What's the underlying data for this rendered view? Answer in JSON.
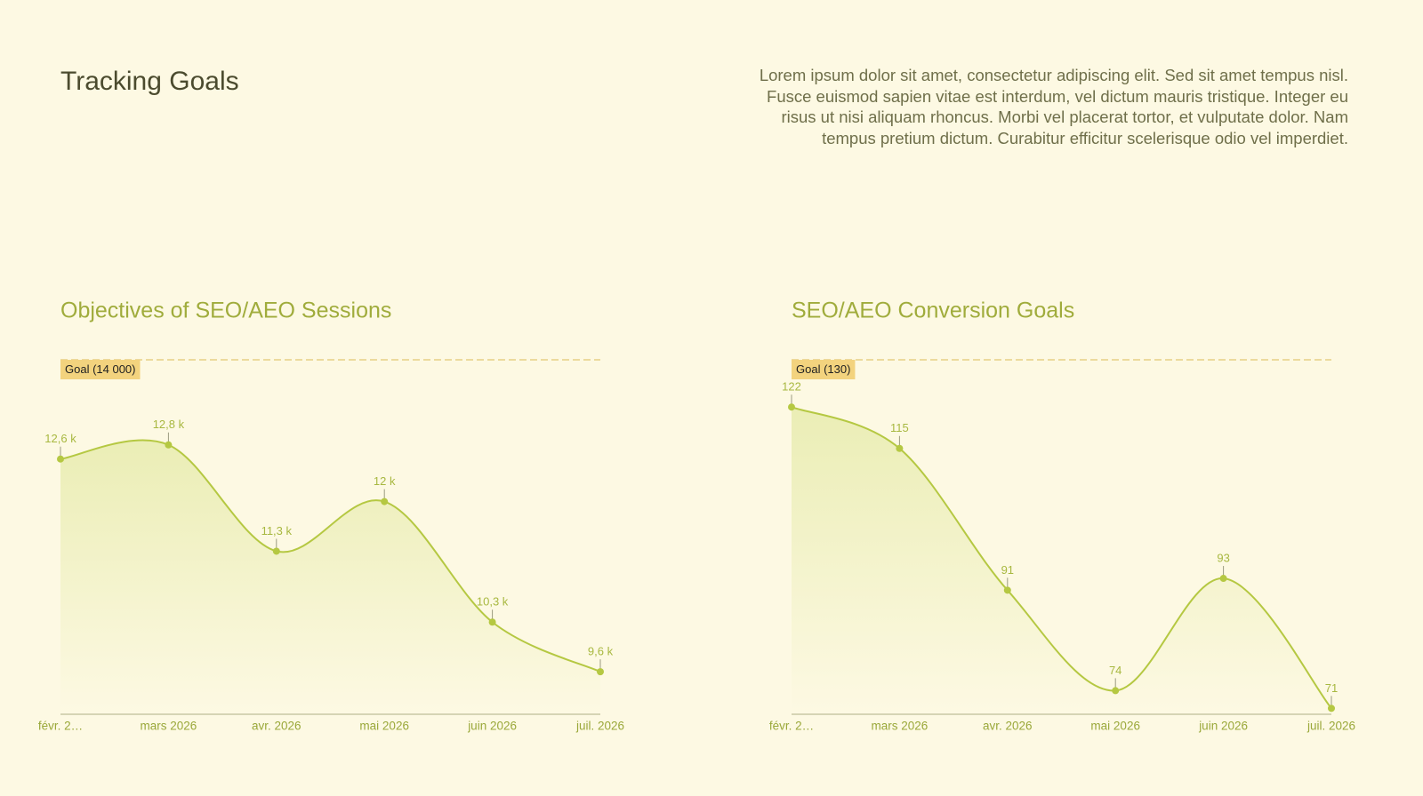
{
  "title": "Tracking Goals",
  "description": "Lorem ipsum dolor sit amet, consectetur adipiscing elit. Sed sit amet tempus nisl. Fusce euismod sapien vitae est interdum, vel dictum mauris tristique. Integer eu risus ut nisi aliquam rhoncus. Morbi vel placerat tortor, et vulputate dolor. Nam tempus pretium dictum. Curabitur efficitur scelerisque odio vel imperdiet.",
  "chart_data": [
    {
      "type": "line",
      "title": "Objectives of SEO/AEO Sessions",
      "categories": [
        "févr. 2…",
        "mars 2026",
        "avr. 2026",
        "mai 2026",
        "juin 2026",
        "juil. 2026"
      ],
      "values": [
        12600,
        12800,
        11300,
        12000,
        10300,
        9600
      ],
      "value_labels": [
        "12,6 k",
        "12,8 k",
        "11,3 k",
        "12 k",
        "10,3 k",
        "9,6 k"
      ],
      "goal": {
        "value": 14000,
        "label": "Goal (14 000)"
      },
      "ylim": [
        9000,
        14000
      ],
      "color": "#b5c842"
    },
    {
      "type": "line",
      "title": "SEO/AEO Conversion Goals",
      "categories": [
        "févr. 2…",
        "mars 2026",
        "avr. 2026",
        "mai 2026",
        "juin 2026",
        "juil. 2026"
      ],
      "values": [
        122,
        115,
        91,
        74,
        93,
        71
      ],
      "goal": {
        "value": 130,
        "label": "Goal (130)"
      },
      "ylim": [
        70,
        130
      ],
      "color": "#b5c842"
    }
  ]
}
